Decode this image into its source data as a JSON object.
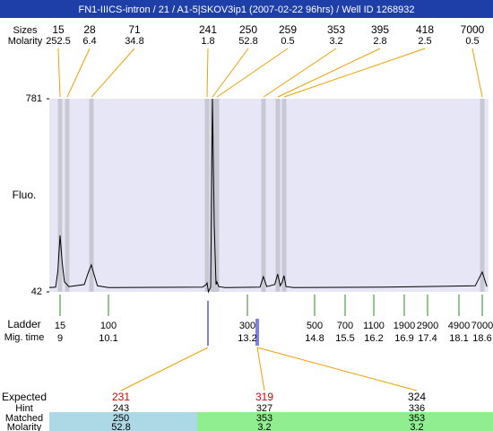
{
  "chart_data": {
    "type": "electropherogram",
    "title": "FN1-IIICS-intron / 21 / A1-5|SKOV3ip1 (2007-02-22 96hrs) / Well ID 1268932",
    "y_label": "Fluo.",
    "ylim": [
      42,
      781
    ],
    "yticks": [
      42,
      781
    ],
    "color": "#000000",
    "peaks": {
      "size_label": "Sizes",
      "molarity_label": "Molarity",
      "sizes": [
        15,
        28,
        71,
        241,
        250,
        259,
        353,
        395,
        418,
        7000
      ],
      "molarity": [
        252.5,
        6.4,
        34.8,
        1.8,
        52.8,
        0.5,
        3.2,
        2.8,
        2.5,
        0.5
      ]
    },
    "trace": {
      "x": [
        8.7,
        8.9,
        8.95,
        9.0,
        9.05,
        9.1,
        9.2,
        9.55,
        9.65,
        9.71,
        9.77,
        9.85,
        10.1,
        12.2,
        12.28,
        12.3,
        12.33,
        12.38,
        12.42,
        12.46,
        12.5,
        12.52,
        12.56,
        12.7,
        13.5,
        13.58,
        13.66,
        13.85,
        13.92,
        13.98,
        14.03,
        14.07,
        14.12,
        14.3,
        16.5,
        18.45,
        18.6,
        18.7
      ],
      "y": [
        58,
        60,
        120,
        258,
        150,
        80,
        62,
        70,
        120,
        145,
        110,
        65,
        58,
        60,
        70,
        76,
        42,
        60,
        781,
        300,
        70,
        80,
        62,
        58,
        60,
        100,
        62,
        70,
        110,
        65,
        80,
        104,
        62,
        58,
        60,
        65,
        118,
        62
      ]
    },
    "ladder": {
      "label": "Ladder",
      "time_label": "Mig. time",
      "sizes": [
        15,
        100,
        300,
        500,
        700,
        1100,
        1900,
        2900,
        4900,
        7000
      ],
      "times": [
        9,
        10.1,
        13.2,
        14.8,
        15.5,
        16.2,
        16.9,
        17.4,
        18.1,
        18.6
      ]
    },
    "results": {
      "expected_label": "Expected",
      "hint_label": "Hint",
      "matched_label": "Matched",
      "molarity_label": "Molarity",
      "expected": [
        231,
        319,
        324
      ],
      "expected_colors": [
        "#e00000",
        "#e00000",
        "#000000"
      ],
      "hint": [
        243,
        327,
        336
      ],
      "matched": [
        250,
        353,
        353
      ],
      "molarity": [
        52.8,
        3.2,
        3.2
      ]
    }
  }
}
